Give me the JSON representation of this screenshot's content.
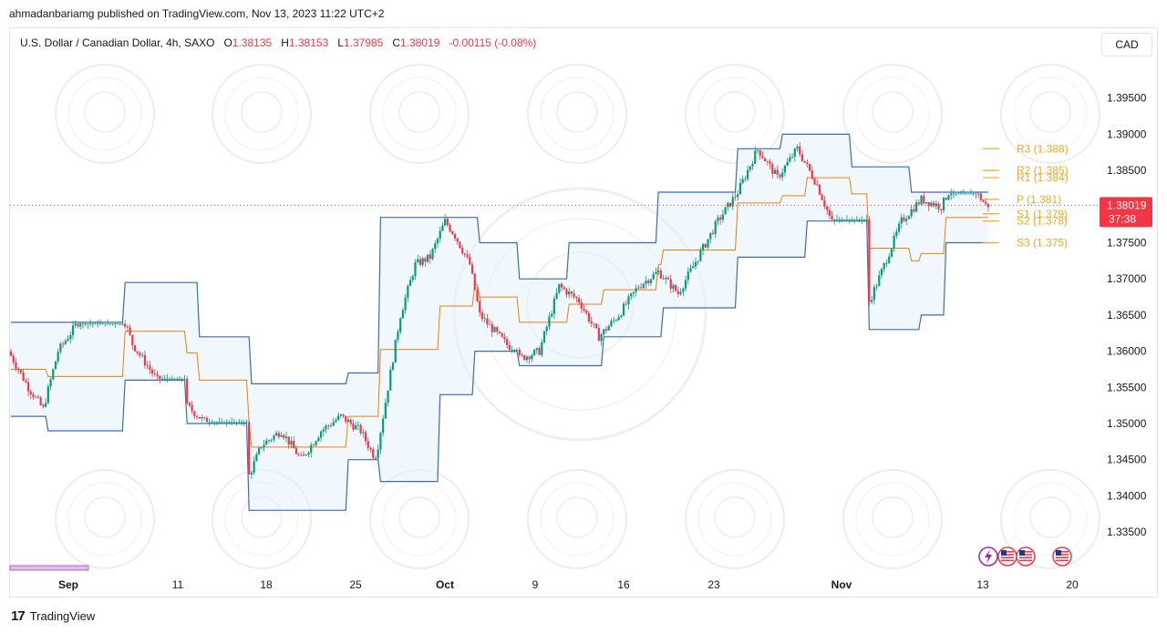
{
  "header": {
    "published_line": "ahmadanbariamg published on TradingView.com, Nov 13, 2023 11:22 UTC+2"
  },
  "legend": {
    "symbol": "U.S. Dollar / Canadian Dollar, 4h, SAXO",
    "open_label": "O",
    "open": "1.38135",
    "high_label": "H",
    "high": "1.38153",
    "low_label": "L",
    "low": "1.37985",
    "close_label": "C",
    "close": "1.38019",
    "change": "-0.00115 (-0.08%)"
  },
  "toolbar": {
    "currency_button": "CAD"
  },
  "price_tag": {
    "price": "1.38019",
    "countdown": "37:38",
    "color": "#f23645"
  },
  "pivots": [
    {
      "label": "R3 (1.388)",
      "value": 1.388
    },
    {
      "label": "R2 (1.385)",
      "value": 1.385
    },
    {
      "label": "R1 (1.384)",
      "value": 1.384
    },
    {
      "label": "P (1.381)",
      "value": 1.381
    },
    {
      "label": "S1 (1.379)",
      "value": 1.379
    },
    {
      "label": "S2 (1.378)",
      "value": 1.378
    },
    {
      "label": "S3 (1.375)",
      "value": 1.375
    }
  ],
  "footer": {
    "brand": "TradingView",
    "logo": "17"
  },
  "colors": {
    "up": "#089981",
    "down": "#f23645",
    "channel": "#2962ff",
    "basis": "#f57c00",
    "pivot": "#f5a623",
    "fill": "#e3f2fd"
  },
  "chart_data": {
    "type": "candlestick",
    "ylim": [
      1.3325,
      1.3995
    ],
    "y_ticks": [
      "1.39500",
      "1.39000",
      "1.38500",
      "1.38000",
      "1.37500",
      "1.37000",
      "1.36500",
      "1.36000",
      "1.35500",
      "1.35000",
      "1.34500",
      "1.34000",
      "1.33500"
    ],
    "x_ticks": [
      "Sep",
      "11",
      "18",
      "25",
      "Oct",
      "9",
      "16",
      "23",
      "Nov",
      "13",
      "20"
    ],
    "anchors": [
      [
        0,
        1.36
      ],
      [
        8,
        1.355
      ],
      [
        14,
        1.352
      ],
      [
        20,
        1.36
      ],
      [
        28,
        1.364
      ],
      [
        36,
        1.368
      ],
      [
        42,
        1.369
      ],
      [
        50,
        1.361
      ],
      [
        60,
        1.356
      ],
      [
        70,
        1.353
      ],
      [
        80,
        1.35
      ],
      [
        90,
        1.344
      ],
      [
        96,
        1.342
      ],
      [
        102,
        1.347
      ],
      [
        110,
        1.349
      ],
      [
        118,
        1.345
      ],
      [
        126,
        1.349
      ],
      [
        134,
        1.351
      ],
      [
        142,
        1.349
      ],
      [
        148,
        1.345
      ],
      [
        152,
        1.353
      ],
      [
        158,
        1.365
      ],
      [
        164,
        1.372
      ],
      [
        170,
        1.373
      ],
      [
        176,
        1.378
      ],
      [
        180,
        1.376
      ],
      [
        186,
        1.372
      ],
      [
        190,
        1.365
      ],
      [
        198,
        1.362
      ],
      [
        206,
        1.359
      ],
      [
        214,
        1.36
      ],
      [
        222,
        1.369
      ],
      [
        230,
        1.367
      ],
      [
        238,
        1.362
      ],
      [
        246,
        1.365
      ],
      [
        254,
        1.369
      ],
      [
        262,
        1.371
      ],
      [
        270,
        1.368
      ],
      [
        278,
        1.373
      ],
      [
        286,
        1.378
      ],
      [
        294,
        1.382
      ],
      [
        302,
        1.388
      ],
      [
        310,
        1.384
      ],
      [
        318,
        1.388
      ],
      [
        326,
        1.383
      ],
      [
        334,
        1.376
      ],
      [
        340,
        1.369
      ],
      [
        346,
        1.366
      ],
      [
        352,
        1.371
      ],
      [
        360,
        1.378
      ],
      [
        368,
        1.381
      ],
      [
        376,
        1.38
      ],
      [
        382,
        1.384
      ],
      [
        390,
        1.382
      ],
      [
        394,
        1.3802
      ]
    ],
    "channel_upper": [
      [
        0,
        1.364
      ],
      [
        45,
        1.364
      ],
      [
        46,
        1.3695
      ],
      [
        75,
        1.3695
      ],
      [
        76,
        1.362
      ],
      [
        96,
        1.362
      ],
      [
        97,
        1.3555
      ],
      [
        135,
        1.3555
      ],
      [
        136,
        1.357
      ],
      [
        148,
        1.357
      ],
      [
        149,
        1.3785
      ],
      [
        188,
        1.3785
      ],
      [
        189,
        1.375
      ],
      [
        204,
        1.375
      ],
      [
        205,
        1.37
      ],
      [
        224,
        1.37
      ],
      [
        225,
        1.375
      ],
      [
        260,
        1.375
      ],
      [
        261,
        1.382
      ],
      [
        292,
        1.382
      ],
      [
        293,
        1.388
      ],
      [
        310,
        1.388
      ],
      [
        311,
        1.39
      ],
      [
        338,
        1.39
      ],
      [
        339,
        1.3855
      ],
      [
        362,
        1.3855
      ],
      [
        363,
        1.382
      ],
      [
        394,
        1.382
      ]
    ],
    "channel_lower": [
      [
        0,
        1.351
      ],
      [
        14,
        1.351
      ],
      [
        15,
        1.349
      ],
      [
        45,
        1.349
      ],
      [
        46,
        1.356
      ],
      [
        70,
        1.356
      ],
      [
        71,
        1.35
      ],
      [
        95,
        1.35
      ],
      [
        96,
        1.338
      ],
      [
        135,
        1.338
      ],
      [
        136,
        1.345
      ],
      [
        148,
        1.345
      ],
      [
        149,
        1.342
      ],
      [
        172,
        1.342
      ],
      [
        173,
        1.354
      ],
      [
        186,
        1.354
      ],
      [
        187,
        1.36
      ],
      [
        204,
        1.36
      ],
      [
        205,
        1.358
      ],
      [
        238,
        1.358
      ],
      [
        239,
        1.362
      ],
      [
        262,
        1.362
      ],
      [
        263,
        1.366
      ],
      [
        292,
        1.366
      ],
      [
        293,
        1.373
      ],
      [
        320,
        1.373
      ],
      [
        321,
        1.378
      ],
      [
        345,
        1.378
      ],
      [
        346,
        1.363
      ],
      [
        366,
        1.363
      ],
      [
        367,
        1.365
      ],
      [
        376,
        1.365
      ],
      [
        377,
        1.375
      ],
      [
        394,
        1.375
      ]
    ]
  }
}
